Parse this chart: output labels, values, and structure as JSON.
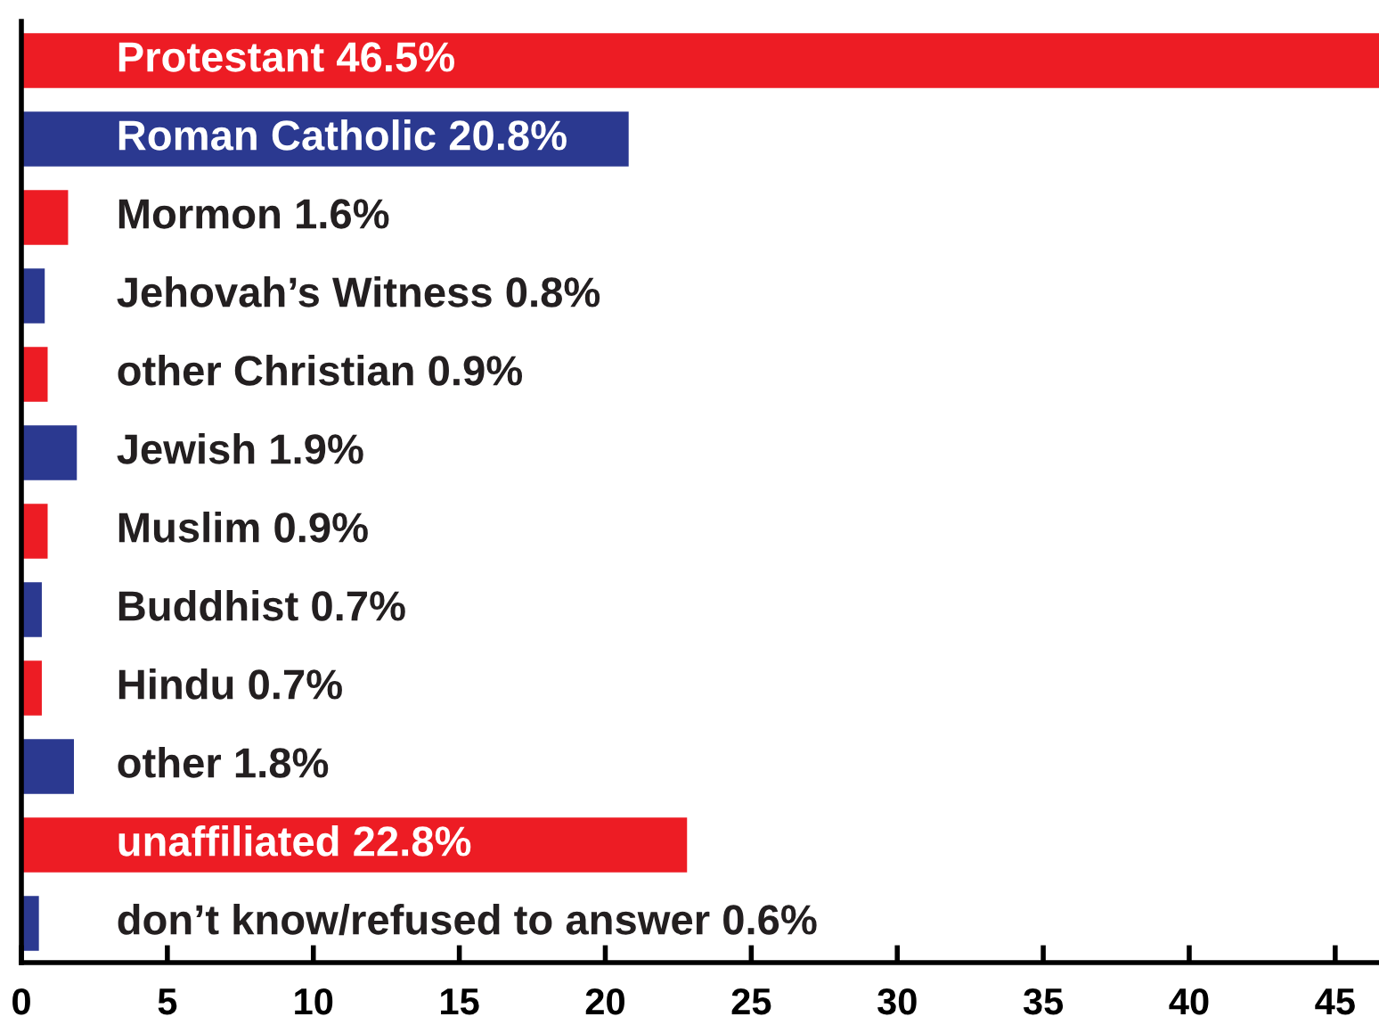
{
  "chart_data": {
    "type": "bar",
    "orientation": "horizontal",
    "categories": [
      "Protestant",
      "Roman Catholic",
      "Mormon",
      "Jehovah’s Witness",
      "other Christian",
      "Jewish",
      "Muslim",
      "Buddhist",
      "Hindu",
      "other",
      "unaffiliated",
      "don’t know/refused to answer"
    ],
    "values": [
      46.5,
      20.8,
      1.6,
      0.8,
      0.9,
      1.9,
      0.9,
      0.7,
      0.7,
      1.8,
      22.8,
      0.6
    ],
    "value_labels": [
      "46.5%",
      "20.8%",
      "1.6%",
      "0.8%",
      "0.9%",
      "1.9%",
      "0.9%",
      "0.7%",
      "0.7%",
      "1.8%",
      "22.8%",
      "0.6%"
    ],
    "colors": [
      "#ed1c24",
      "#2b3990",
      "#ed1c24",
      "#2b3990",
      "#ed1c24",
      "#2b3990",
      "#ed1c24",
      "#2b3990",
      "#ed1c24",
      "#2b3990",
      "#ed1c24",
      "#2b3990"
    ],
    "xlim": [
      0,
      46.5
    ],
    "xticks": [
      0,
      5,
      10,
      15,
      20,
      25,
      30,
      35,
      40,
      45
    ],
    "grid": false,
    "legend": false
  }
}
